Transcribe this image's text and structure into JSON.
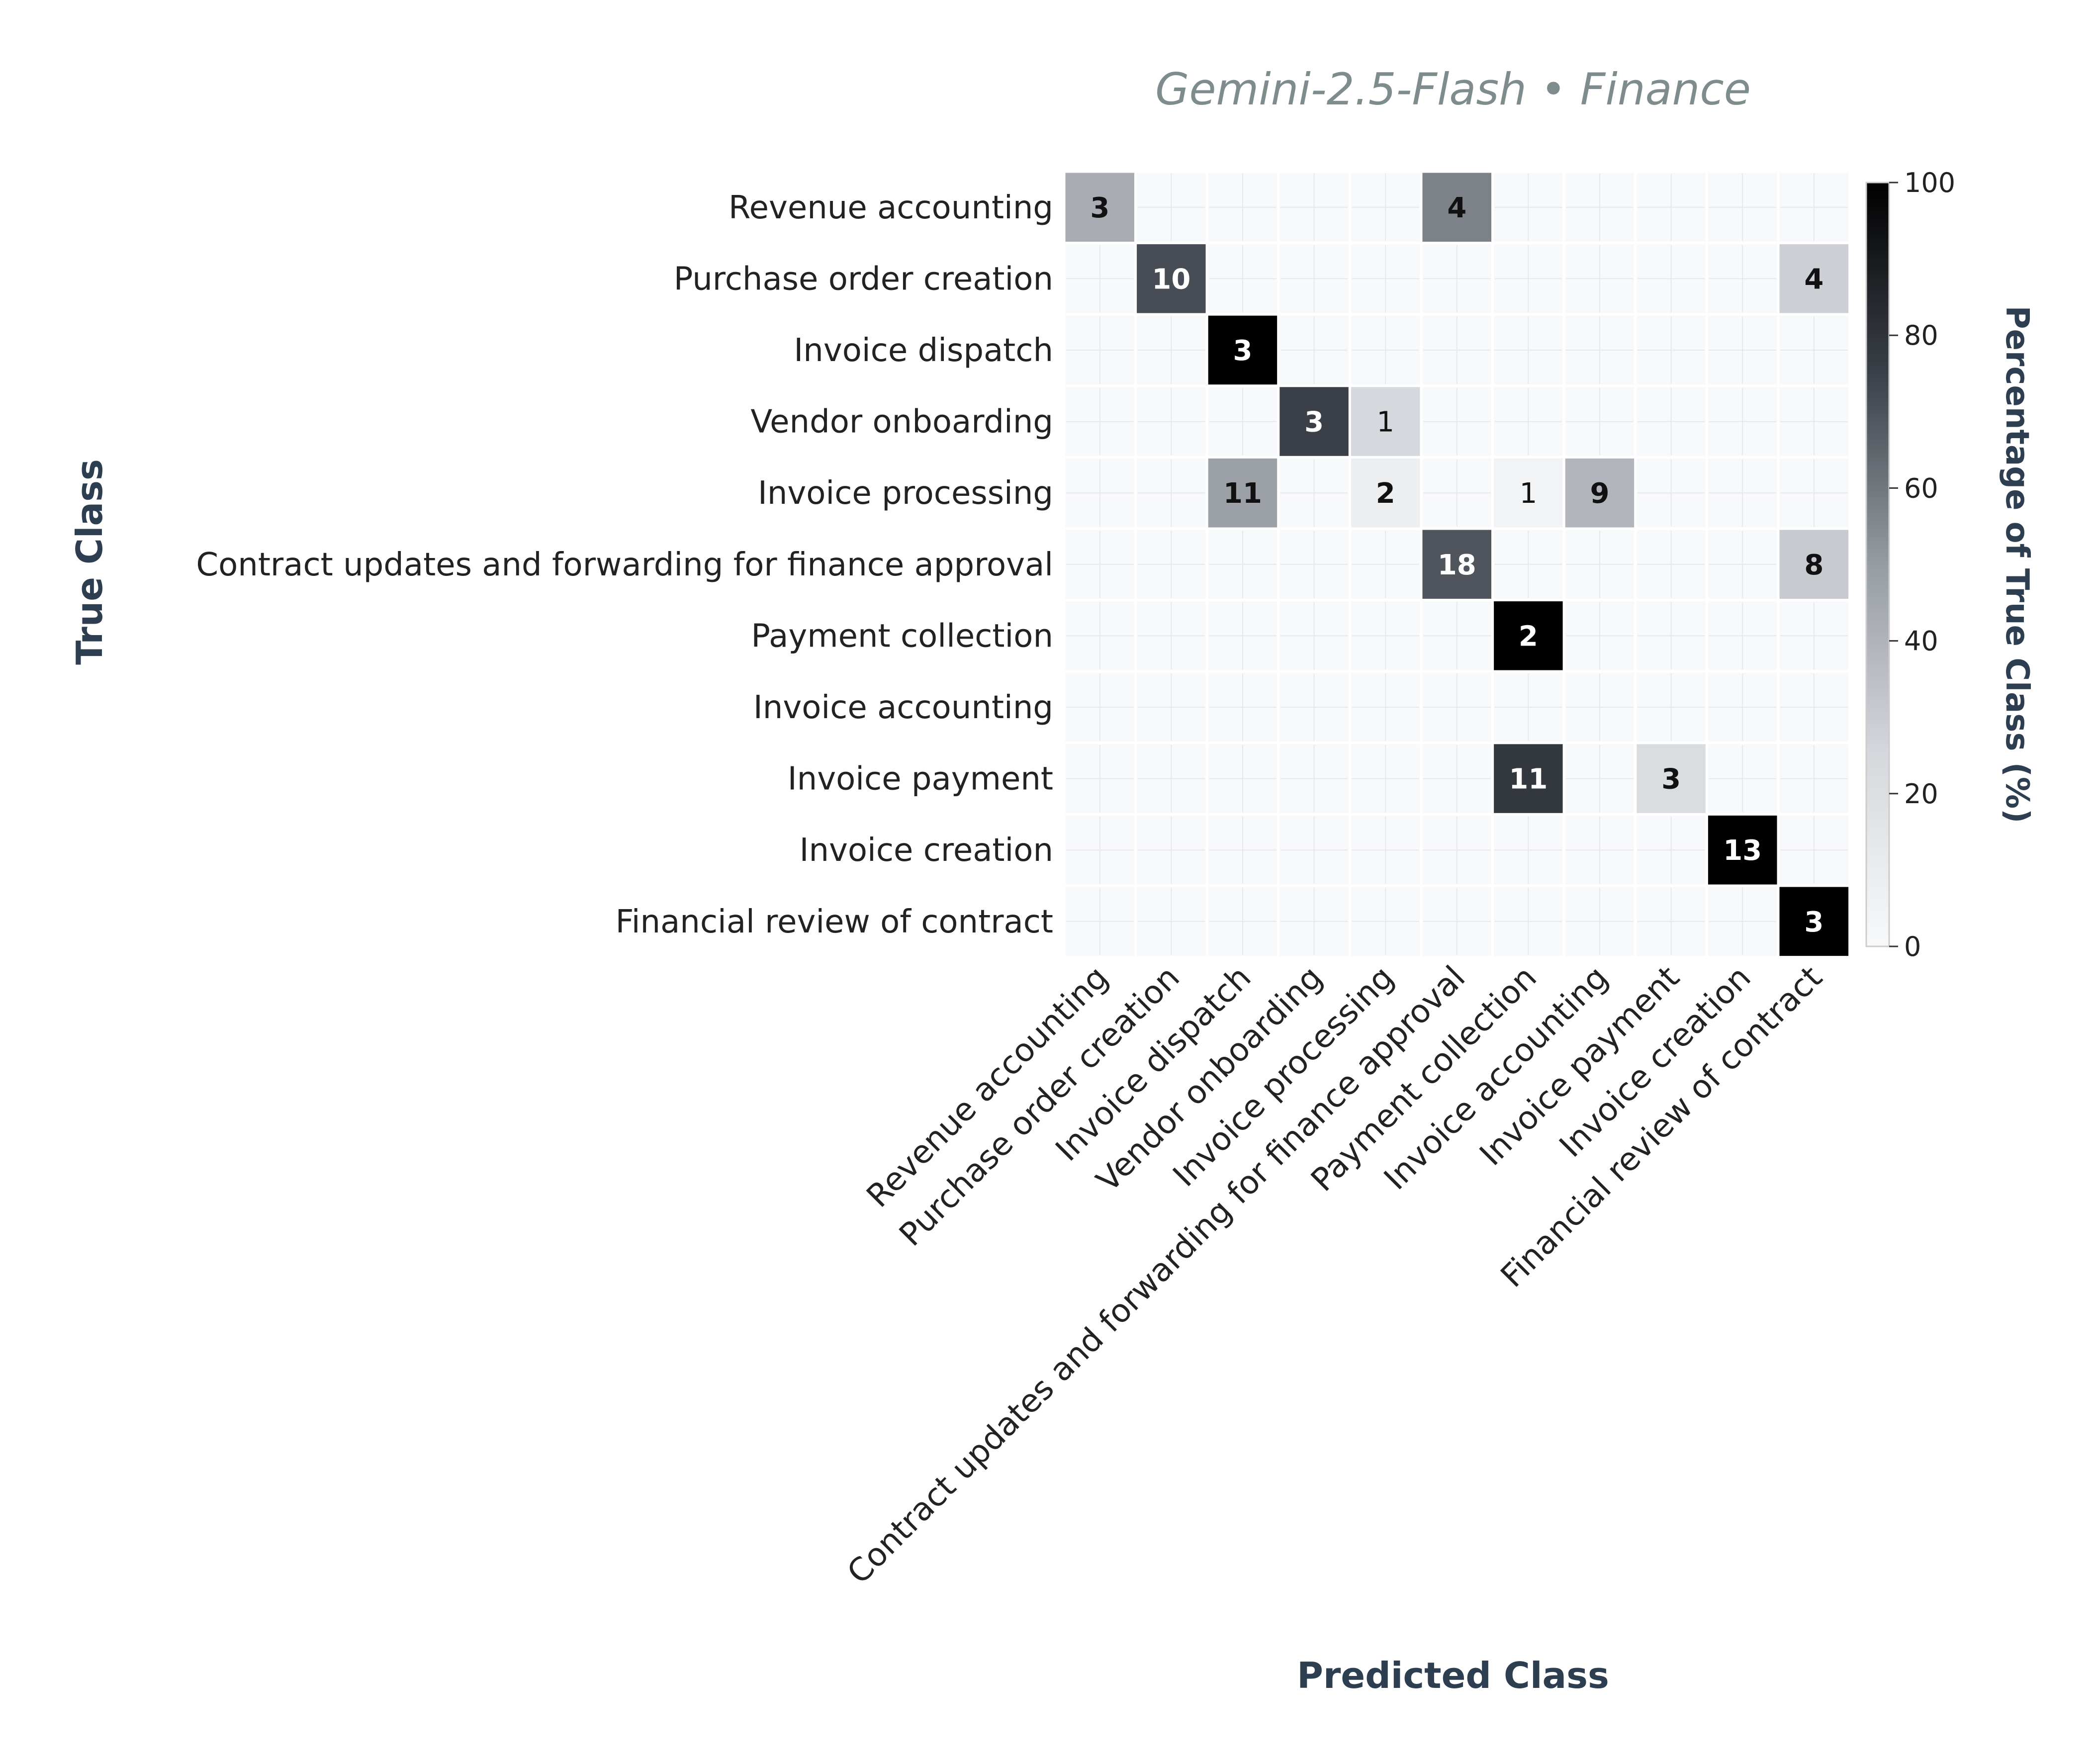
{
  "chart_data": {
    "type": "heatmap",
    "title": "Gemini-2.5-Flash • Finance",
    "xlabel": "Predicted Class",
    "ylabel": "True Class",
    "colorbar": {
      "label": "Percentage of True Class (%)",
      "range": [
        0,
        100
      ],
      "ticks": [
        "0",
        "20",
        "40",
        "60",
        "80",
        "100"
      ]
    },
    "colormap": [
      "#f8f9fa",
      "#000000"
    ],
    "categories": [
      "Revenue accounting",
      "Purchase order creation",
      "Invoice dispatch",
      "Vendor onboarding",
      "Invoice processing",
      "Contract updates and forwarding for finance approval",
      "Payment collection",
      "Invoice accounting",
      "Invoice payment",
      "Invoice creation",
      "Financial review of contract"
    ],
    "counts": [
      [
        3,
        0,
        0,
        0,
        0,
        4,
        0,
        0,
        0,
        0,
        0
      ],
      [
        0,
        10,
        0,
        0,
        0,
        0,
        0,
        0,
        0,
        0,
        4
      ],
      [
        0,
        0,
        3,
        0,
        0,
        0,
        0,
        0,
        0,
        0,
        0
      ],
      [
        0,
        0,
        0,
        3,
        1,
        0,
        0,
        0,
        0,
        0,
        0
      ],
      [
        0,
        0,
        11,
        0,
        2,
        0,
        1,
        9,
        0,
        0,
        0
      ],
      [
        0,
        0,
        0,
        0,
        0,
        18,
        0,
        0,
        0,
        0,
        8
      ],
      [
        0,
        0,
        0,
        0,
        0,
        0,
        2,
        0,
        0,
        0,
        0
      ],
      [
        0,
        0,
        0,
        0,
        0,
        0,
        0,
        0,
        0,
        0,
        0
      ],
      [
        0,
        0,
        0,
        0,
        0,
        0,
        11,
        0,
        3,
        0,
        0
      ],
      [
        0,
        0,
        0,
        0,
        0,
        0,
        0,
        0,
        0,
        13,
        0
      ],
      [
        0,
        0,
        0,
        0,
        0,
        0,
        0,
        0,
        0,
        0,
        3
      ]
    ]
  }
}
